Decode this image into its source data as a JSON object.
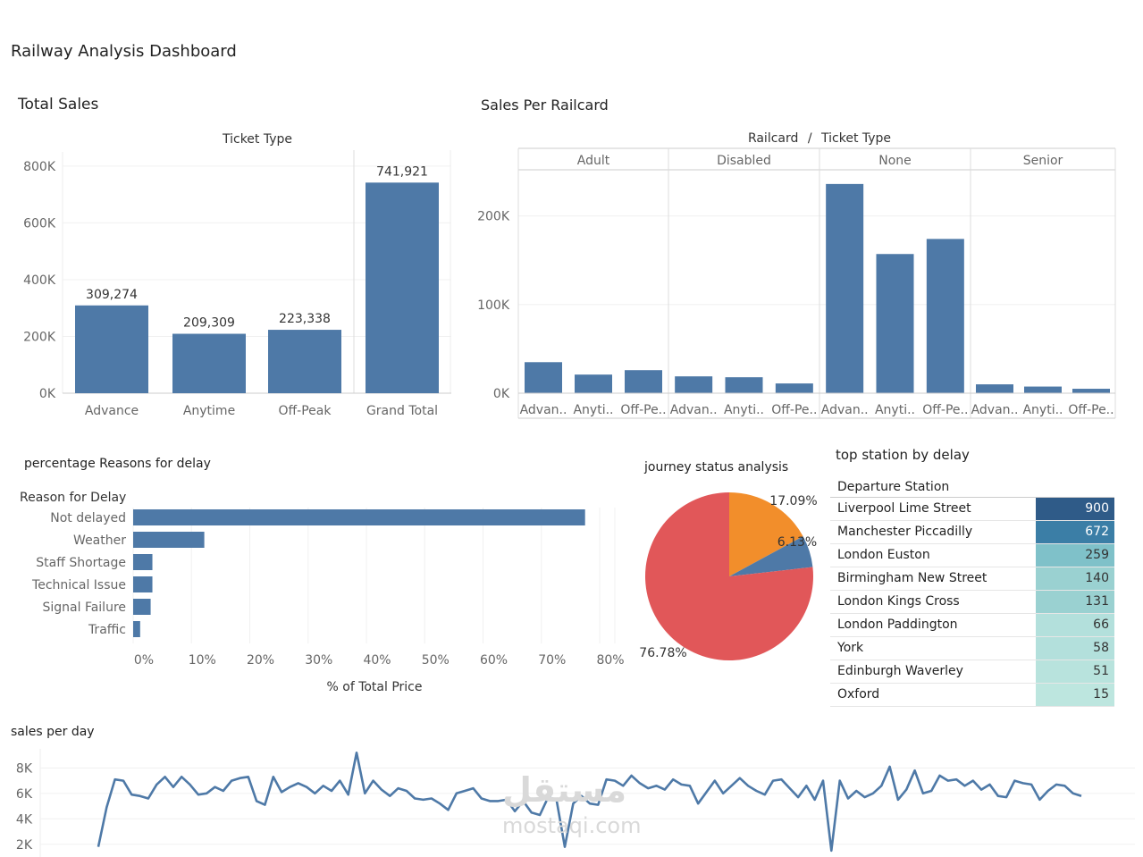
{
  "dashboard": {
    "title": "Railway Analysis Dashboard"
  },
  "total_sales": {
    "title": "Total Sales",
    "header": "Ticket Type",
    "chart_data": {
      "type": "bar",
      "categories": [
        "Advance",
        "Anytime",
        "Off-Peak",
        "Grand Total"
      ],
      "values": [
        309274,
        209309,
        223338,
        741921
      ],
      "value_labels": [
        "309,274",
        "209,309",
        "223,338",
        "741,921"
      ],
      "yticks": [
        "0K",
        "200K",
        "400K",
        "600K",
        "800K"
      ],
      "ylim": [
        0,
        850000
      ]
    }
  },
  "railcard": {
    "title": "Sales Per Railcard",
    "header_a": "Railcard",
    "header_sep": "/",
    "header_b": "Ticket Type",
    "chart_data": {
      "type": "bar",
      "groups": [
        "Adult",
        "Disabled",
        "None",
        "Senior"
      ],
      "categories": [
        "Advan..",
        "Anyti..",
        "Off-Pe.."
      ],
      "series": [
        {
          "group": "Adult",
          "values": [
            35000,
            21000,
            26000
          ]
        },
        {
          "group": "Disabled",
          "values": [
            19000,
            18000,
            11000
          ]
        },
        {
          "group": "None",
          "values": [
            236000,
            157000,
            174000
          ]
        },
        {
          "group": "Senior",
          "values": [
            10000,
            7500,
            5000
          ]
        }
      ],
      "yticks": [
        "0K",
        "100K",
        "200K"
      ],
      "ylim": [
        0,
        252000
      ]
    }
  },
  "delay_reasons": {
    "title": "percentage Reasons for delay",
    "col_header": "Reason for Delay",
    "xlabel": "% of Total Price",
    "chart_data": {
      "type": "bar",
      "categories": [
        "Not delayed",
        "Weather",
        "Staff Shortage",
        "Technical Issue",
        "Signal Failure",
        "Traffic"
      ],
      "values": [
        77.5,
        12.2,
        3.3,
        3.3,
        3.0,
        1.2
      ],
      "xticks": [
        "0%",
        "10%",
        "20%",
        "30%",
        "40%",
        "50%",
        "60%",
        "70%",
        "80%"
      ],
      "xlim": [
        0,
        80
      ]
    }
  },
  "journey_status": {
    "title": "journey status analysis",
    "chart_data": {
      "type": "pie",
      "values": [
        17.09,
        6.13,
        76.78
      ],
      "labels": [
        "17.09%",
        "6.13%",
        "76.78%"
      ],
      "colors": [
        "#f28e2b",
        "#4e79a7",
        "#e15759"
      ]
    }
  },
  "top_station": {
    "title": "top station by delay",
    "header": "Departure Station",
    "rows": [
      {
        "station": "Liverpool Lime Street",
        "value": "900"
      },
      {
        "station": "Manchester Piccadilly",
        "value": "672"
      },
      {
        "station": "London Euston",
        "value": "259"
      },
      {
        "station": "Birmingham New Street",
        "value": "140"
      },
      {
        "station": "London Kings Cross",
        "value": "131"
      },
      {
        "station": "London Paddington",
        "value": "66"
      },
      {
        "station": "York",
        "value": "58"
      },
      {
        "station": "Edinburgh Waverley",
        "value": "51"
      },
      {
        "station": "Oxford",
        "value": "15"
      }
    ],
    "cell_colors": [
      "#2f5b88",
      "#3b7ea6",
      "#7fc1c9",
      "#9ad1d1",
      "#9ad1d1",
      "#b3e0dc",
      "#b3e0dc",
      "#b8e3dd",
      "#bde6df"
    ]
  },
  "sales_per_day": {
    "title": "sales per day",
    "chart_data": {
      "type": "line",
      "yticks": [
        "2K",
        "4K",
        "6K",
        "8K"
      ],
      "ylim": [
        1000,
        9500
      ],
      "values": [
        1800,
        4900,
        7100,
        7000,
        5900,
        5800,
        5600,
        6700,
        7300,
        6500,
        7300,
        6700,
        5900,
        6000,
        6500,
        6200,
        7000,
        7200,
        7300,
        5400,
        5100,
        7300,
        6100,
        6500,
        6800,
        6500,
        6000,
        6600,
        6200,
        7000,
        5900,
        9200,
        6000,
        7000,
        6300,
        5800,
        6400,
        6200,
        5600,
        5500,
        5600,
        5200,
        4700,
        6000,
        6200,
        6400,
        5600,
        5400,
        5400,
        5500,
        4600,
        5400,
        4500,
        4300,
        5700,
        5500,
        1800,
        5200,
        5800,
        5200,
        5100,
        7100,
        7000,
        6600,
        7400,
        6800,
        6400,
        6600,
        6300,
        7100,
        6700,
        6600,
        5200,
        6100,
        7000,
        6000,
        6600,
        7200,
        6600,
        6200,
        5900,
        7000,
        7100,
        6400,
        5700,
        6600,
        5500,
        7000,
        1500,
        7000,
        5600,
        6200,
        5700,
        6000,
        6600,
        8100,
        5500,
        6300,
        7800,
        6000,
        6200,
        7400,
        7000,
        7100,
        6600,
        7000,
        6300,
        6700,
        5800,
        5700,
        7000,
        6800,
        6700,
        5500,
        6200,
        6700,
        6600,
        6000,
        5800
      ]
    }
  },
  "watermark": {
    "arabic": "مستقل",
    "latin": "mostaqi.com"
  }
}
